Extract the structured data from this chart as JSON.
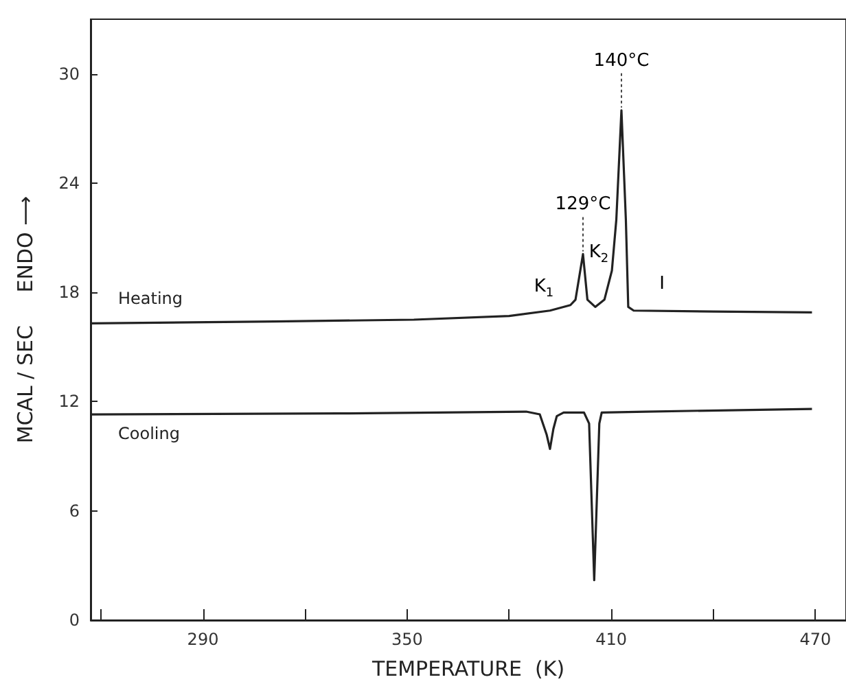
{
  "chart_data": {
    "type": "line",
    "xlabel": "TEMPERATURE  (K)",
    "ylabel": "MCAL / SEC     ENDO ⟶",
    "xlim": [
      257,
      479
    ],
    "ylim": [
      0,
      33
    ],
    "xticks": [
      {
        "value": 260,
        "label": null
      },
      290,
      {
        "value": 320,
        "label": null
      },
      350,
      {
        "value": 380,
        "label": null
      },
      410,
      {
        "value": 440,
        "label": null
      },
      470
    ],
    "yticks": [
      0,
      6,
      12,
      18,
      24,
      30
    ],
    "grid": false,
    "legend": false,
    "marker": "none",
    "line_style": "solid",
    "series": [
      {
        "name": "Heating",
        "color": "#222222",
        "x": [
          257,
          311,
          352,
          380,
          392,
          398,
          399.5,
          401.7,
          403,
          405.3,
          408,
          410.2,
          411.5,
          413,
          414.3,
          415,
          416.6,
          440,
          469
        ],
        "values": [
          16.3,
          16.4,
          16.5,
          16.7,
          17.0,
          17.3,
          17.6,
          20.1,
          17.6,
          17.2,
          17.6,
          19.2,
          22,
          28.0,
          22,
          17.2,
          17.0,
          16.95,
          16.9
        ]
      },
      {
        "name": "Cooling",
        "color": "#222222",
        "x": [
          257,
          330,
          385,
          389,
          391,
          392,
          393,
          394,
          396,
          402,
          403.5,
          405,
          406.5,
          407.2,
          420,
          469
        ],
        "values": [
          11.3,
          11.35,
          11.45,
          11.3,
          10.2,
          9.4,
          10.5,
          11.2,
          11.4,
          11.4,
          10.8,
          2.2,
          10.8,
          11.4,
          11.45,
          11.6
        ]
      }
    ],
    "annotations": [
      "K$_{1}$",
      "K$_{2}$",
      "I",
      {
        "text": "129°C",
        "x": 401.7,
        "y": 20.1
      },
      {
        "text": "140°C",
        "x": 413,
        "y": 28.0
      }
    ]
  }
}
